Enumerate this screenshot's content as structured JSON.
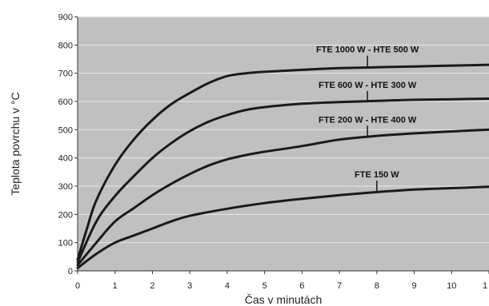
{
  "chart_data": {
    "type": "line",
    "title": "",
    "xlabel": "Čas v minutách",
    "ylabel": "Teplota povrchu v °C",
    "xlim": [
      0,
      11
    ],
    "ylim": [
      0,
      900
    ],
    "x_ticks": [
      "0",
      "1",
      "2",
      "3",
      "4",
      "5",
      "6",
      "7",
      "8",
      "9",
      "10",
      "1"
    ],
    "y_ticks": [
      "0",
      "100",
      "200",
      "300",
      "400",
      "500",
      "600",
      "700",
      "800",
      "900"
    ],
    "grid": true,
    "legend": "none",
    "series": [
      {
        "name": "FTE 1000 W - HTE 500 W",
        "x": [
          0,
          0.25,
          0.5,
          1,
          1.5,
          2,
          2.5,
          3,
          3.5,
          4,
          4.5,
          5,
          6,
          7,
          8,
          9,
          10,
          11
        ],
        "values": [
          40,
          150,
          250,
          375,
          465,
          535,
          590,
          630,
          665,
          690,
          700,
          705,
          712,
          718,
          721,
          724,
          727,
          730
        ]
      },
      {
        "name": "FTE 600 W - HTE 300 W",
        "x": [
          0,
          0.5,
          1,
          1.5,
          2,
          2.5,
          3,
          3.5,
          4,
          4.5,
          5,
          6,
          7,
          8,
          9,
          10,
          11
        ],
        "values": [
          30,
          175,
          265,
          335,
          400,
          452,
          495,
          528,
          552,
          570,
          580,
          592,
          598,
          602,
          606,
          608,
          610
        ]
      },
      {
        "name": "FTE 200 W - HTE 400 W",
        "x": [
          0,
          0.5,
          1,
          1.5,
          2,
          2.5,
          3,
          3.5,
          4,
          4.5,
          5,
          6,
          7,
          8,
          9,
          10,
          11
        ],
        "values": [
          20,
          100,
          175,
          222,
          268,
          308,
          343,
          373,
          395,
          410,
          422,
          442,
          465,
          478,
          487,
          494,
          500
        ]
      },
      {
        "name": "FTE 150 W",
        "x": [
          0,
          0.5,
          1,
          1.5,
          2,
          2.5,
          3,
          4,
          5,
          6,
          7,
          8,
          9,
          10,
          11
        ],
        "values": [
          10,
          60,
          100,
          125,
          150,
          175,
          195,
          220,
          240,
          255,
          268,
          279,
          288,
          293,
          298
        ]
      }
    ],
    "labels": [
      {
        "text": "FTE 1000 W - HTE 500 W",
        "series": 0,
        "x": 7.75,
        "y": 785,
        "pointer_x": 7.75,
        "pointer_to": 720
      },
      {
        "text": "FTE 600 W - HTE 300 W",
        "series": 1,
        "x": 7.75,
        "y": 660,
        "pointer_x": 7.75,
        "pointer_to": 601
      },
      {
        "text": "FTE 200 W - HTE 400 W",
        "series": 2,
        "x": 7.75,
        "y": 537,
        "pointer_x": 7.75,
        "pointer_to": 476
      },
      {
        "text": "FTE 150 W",
        "series": 3,
        "x": 8,
        "y": 342,
        "pointer_x": 8,
        "pointer_to": 279
      }
    ],
    "colors": {
      "plot_bg": "#c0c0c0",
      "grid": "#e8e8e8",
      "line": "#1a1a1a"
    }
  }
}
